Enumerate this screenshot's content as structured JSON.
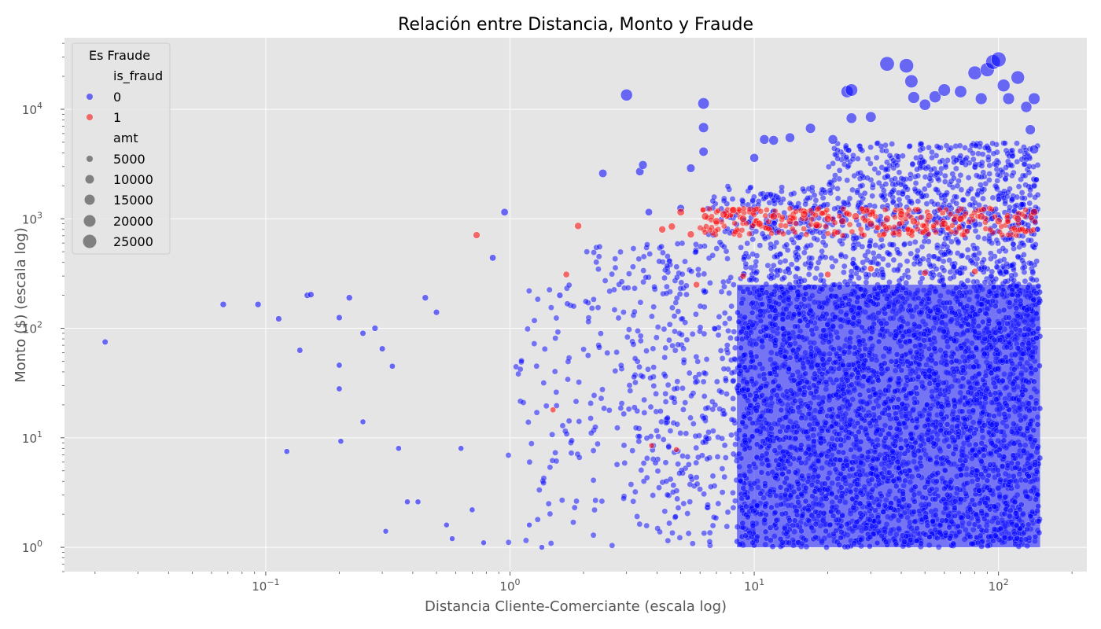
{
  "chart_data": {
    "type": "scatter",
    "title": "Relación entre Distancia, Monto y Fraude",
    "xlabel": "Distancia Cliente-Comerciante (escala log)",
    "ylabel": "Monto ($) (escala log)",
    "x_scale": "log",
    "y_scale": "log",
    "xlim": [
      0.015,
      230
    ],
    "ylim": [
      0.6,
      45000
    ],
    "x_ticks": [
      {
        "value": 0.1,
        "base": "10",
        "exp": "−1"
      },
      {
        "value": 1,
        "base": "10",
        "exp": "0"
      },
      {
        "value": 10,
        "base": "10",
        "exp": "1"
      },
      {
        "value": 100,
        "base": "10",
        "exp": "2"
      }
    ],
    "y_ticks": [
      {
        "value": 1,
        "base": "10",
        "exp": "0"
      },
      {
        "value": 10,
        "base": "10",
        "exp": "1"
      },
      {
        "value": 100,
        "base": "10",
        "exp": "2"
      },
      {
        "value": 1000,
        "base": "10",
        "exp": "3"
      },
      {
        "value": 10000,
        "base": "10",
        "exp": "4"
      }
    ],
    "grid": true,
    "background": "#e5e5e5",
    "legend": {
      "position": "top-left",
      "title": "Es Fraude",
      "hue_title": "is_fraud",
      "hue_entries": [
        {
          "label": "0",
          "color": "#0000ff"
        },
        {
          "label": "1",
          "color": "#ff0000"
        }
      ],
      "size_title": "amt",
      "size_entries": [
        {
          "label": "5000",
          "amt": 5000
        },
        {
          "label": "10000",
          "amt": 10000
        },
        {
          "label": "15000",
          "amt": 15000
        },
        {
          "label": "20000",
          "amt": 20000
        },
        {
          "label": "25000",
          "amt": 25000
        }
      ]
    },
    "series": [
      {
        "name": "0",
        "color": "#0000ff",
        "points": [
          [
            0.022,
            75
          ],
          [
            0.067,
            165
          ],
          [
            0.093,
            165
          ],
          [
            0.113,
            122
          ],
          [
            0.122,
            7.5
          ],
          [
            0.138,
            63
          ],
          [
            0.148,
            200
          ],
          [
            0.153,
            203
          ],
          [
            0.2,
            125
          ],
          [
            0.2,
            46
          ],
          [
            0.2,
            28
          ],
          [
            0.203,
            9.3
          ],
          [
            0.22,
            190
          ],
          [
            0.25,
            90
          ],
          [
            0.25,
            14
          ],
          [
            0.28,
            100
          ],
          [
            0.3,
            65
          ],
          [
            0.31,
            1.4
          ],
          [
            0.33,
            45
          ],
          [
            0.35,
            8
          ],
          [
            0.38,
            2.6
          ],
          [
            0.42,
            2.6
          ],
          [
            0.45,
            190
          ],
          [
            0.5,
            140
          ],
          [
            0.55,
            1.6
          ],
          [
            0.58,
            1.2
          ],
          [
            0.63,
            8
          ],
          [
            0.7,
            2.2
          ],
          [
            0.78,
            1.1
          ],
          [
            0.85,
            440
          ],
          [
            0.95,
            1150
          ],
          [
            1.2,
            1.6
          ],
          [
            1.35,
            1.0
          ],
          [
            1.6,
            200
          ],
          [
            2.4,
            2600
          ],
          [
            3.0,
            13500
          ],
          [
            3.4,
            2700
          ],
          [
            3.5,
            3100
          ],
          [
            3.7,
            1150
          ],
          [
            5.0,
            1250
          ],
          [
            5.5,
            2900
          ],
          [
            6.2,
            11300
          ],
          [
            6.2,
            6800
          ],
          [
            6.2,
            4100
          ],
          [
            10.0,
            3600
          ],
          [
            11.0,
            5300
          ],
          [
            12.0,
            5200
          ],
          [
            14.0,
            5500
          ],
          [
            17.0,
            6700
          ],
          [
            21.0,
            5300
          ],
          [
            24.0,
            14500
          ],
          [
            25.0,
            15000
          ],
          [
            25.0,
            8300
          ],
          [
            30.0,
            8500
          ],
          [
            35.0,
            26000
          ],
          [
            42.0,
            25000
          ],
          [
            44.0,
            18000
          ],
          [
            45.0,
            12800
          ],
          [
            50.0,
            11000
          ],
          [
            55.0,
            13000
          ],
          [
            60.0,
            15000
          ],
          [
            70.0,
            14500
          ],
          [
            80.0,
            21500
          ],
          [
            85.0,
            12500
          ],
          [
            90.0,
            23000
          ],
          [
            95.0,
            27000
          ],
          [
            100.0,
            28500
          ],
          [
            105.0,
            16500
          ],
          [
            110.0,
            12500
          ],
          [
            120.0,
            19500
          ],
          [
            130.0,
            10500
          ],
          [
            140.0,
            12500
          ],
          [
            135.0,
            6500
          ],
          [
            140.0,
            4300
          ]
        ]
      },
      {
        "name": "1",
        "color": "#ff0000",
        "points": [
          [
            0.73,
            710
          ],
          [
            1.9,
            860
          ],
          [
            1.7,
            310
          ],
          [
            4.2,
            800
          ],
          [
            4.6,
            850
          ],
          [
            5.0,
            1150
          ],
          [
            5.5,
            720
          ],
          [
            6.3,
            1050
          ],
          [
            7.0,
            950
          ],
          [
            7.5,
            1100
          ],
          [
            8.2,
            1200
          ],
          [
            9.0,
            1000
          ],
          [
            10.5,
            900
          ],
          [
            12.0,
            1050
          ],
          [
            14.0,
            950
          ],
          [
            16.0,
            1100
          ],
          [
            18.0,
            880
          ],
          [
            20.0,
            1000
          ],
          [
            23.0,
            950
          ],
          [
            26.0,
            1050
          ],
          [
            30.0,
            900
          ],
          [
            35.0,
            1000
          ],
          [
            40.0,
            1100
          ],
          [
            45.0,
            950
          ],
          [
            52.0,
            1050
          ],
          [
            60.0,
            900
          ],
          [
            70.0,
            1000
          ],
          [
            85.0,
            1050
          ],
          [
            100.0,
            950
          ],
          [
            120.0,
            1000
          ],
          [
            140.0,
            1150
          ],
          [
            30.0,
            350
          ],
          [
            50.0,
            320
          ],
          [
            80.0,
            330
          ],
          [
            20.0,
            310
          ],
          [
            9.0,
            300
          ],
          [
            5.8,
            250
          ],
          [
            1.5,
            18
          ],
          [
            3.8,
            8.5
          ],
          [
            4.8,
            7.8
          ]
        ]
      }
    ],
    "dense_region_note_free": true
  }
}
